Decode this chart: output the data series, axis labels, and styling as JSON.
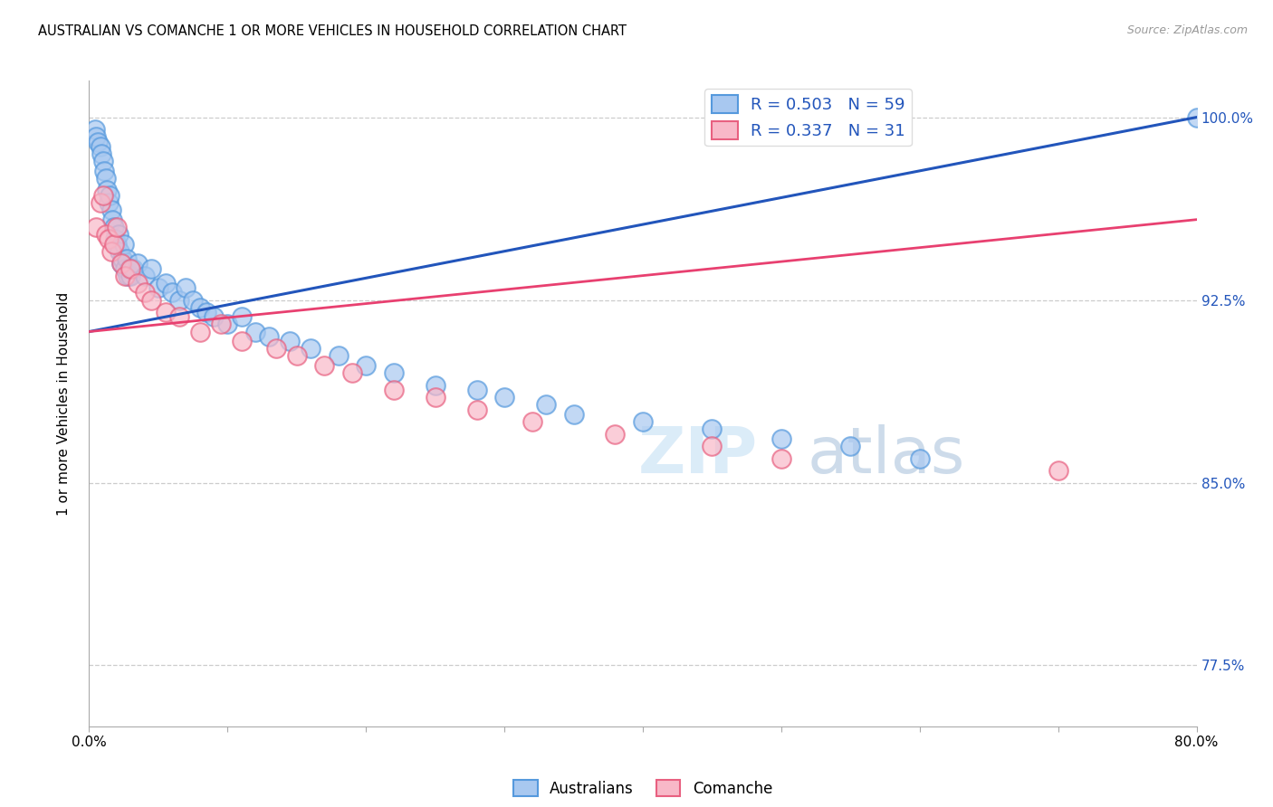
{
  "title": "AUSTRALIAN VS COMANCHE 1 OR MORE VEHICLES IN HOUSEHOLD CORRELATION CHART",
  "source": "Source: ZipAtlas.com",
  "ylabel": "1 or more Vehicles in Household",
  "xlim": [
    0.0,
    80.0
  ],
  "ylim": [
    75.0,
    101.5
  ],
  "background_color": "#ffffff",
  "australians_fill": "#a8c8f0",
  "australians_edge": "#5599dd",
  "comanche_fill": "#f8b8c8",
  "comanche_edge": "#e86080",
  "blue_line_color": "#2255bb",
  "pink_line_color": "#e84070",
  "legend_color": "#2255bb",
  "R_australian": 0.503,
  "N_australian": 59,
  "R_comanche": 0.337,
  "N_comanche": 31,
  "grid_color": "#cccccc",
  "aus_x": [
    0.4,
    0.5,
    0.6,
    0.8,
    0.9,
    1.0,
    1.1,
    1.2,
    1.3,
    1.4,
    1.5,
    1.6,
    1.7,
    1.8,
    1.9,
    2.0,
    2.1,
    2.2,
    2.3,
    2.4,
    2.5,
    2.6,
    2.7,
    2.8,
    2.9,
    3.0,
    3.2,
    3.5,
    4.0,
    4.5,
    5.0,
    5.5,
    6.0,
    6.5,
    7.0,
    7.5,
    8.0,
    8.5,
    9.0,
    10.0,
    11.0,
    12.0,
    13.0,
    14.5,
    16.0,
    18.0,
    20.0,
    22.0,
    25.0,
    28.0,
    30.0,
    33.0,
    35.0,
    40.0,
    45.0,
    50.0,
    55.0,
    60.0,
    80.0
  ],
  "aus_y": [
    99.5,
    99.2,
    99.0,
    98.8,
    98.5,
    98.2,
    97.8,
    97.5,
    97.0,
    96.5,
    96.8,
    96.2,
    95.8,
    95.5,
    95.0,
    94.8,
    95.2,
    94.5,
    94.0,
    94.2,
    94.8,
    93.8,
    94.2,
    93.5,
    93.8,
    93.5,
    93.8,
    94.0,
    93.5,
    93.8,
    93.0,
    93.2,
    92.8,
    92.5,
    93.0,
    92.5,
    92.2,
    92.0,
    91.8,
    91.5,
    91.8,
    91.2,
    91.0,
    90.8,
    90.5,
    90.2,
    89.8,
    89.5,
    89.0,
    88.8,
    88.5,
    88.2,
    87.8,
    87.5,
    87.2,
    86.8,
    86.5,
    86.0,
    100.0
  ],
  "com_x": [
    0.5,
    0.8,
    1.0,
    1.2,
    1.4,
    1.6,
    1.8,
    2.0,
    2.3,
    2.6,
    3.0,
    3.5,
    4.0,
    4.5,
    5.5,
    6.5,
    8.0,
    9.5,
    11.0,
    13.5,
    15.0,
    17.0,
    19.0,
    22.0,
    25.0,
    28.0,
    32.0,
    38.0,
    45.0,
    50.0,
    70.0
  ],
  "com_y": [
    95.5,
    96.5,
    96.8,
    95.2,
    95.0,
    94.5,
    94.8,
    95.5,
    94.0,
    93.5,
    93.8,
    93.2,
    92.8,
    92.5,
    92.0,
    91.8,
    91.2,
    91.5,
    90.8,
    90.5,
    90.2,
    89.8,
    89.5,
    88.8,
    88.5,
    88.0,
    87.5,
    87.0,
    86.5,
    86.0,
    85.5
  ],
  "blue_line_x": [
    0,
    80
  ],
  "blue_line_y": [
    91.2,
    100.0
  ],
  "pink_line_x": [
    0,
    80
  ],
  "pink_line_y": [
    91.2,
    95.8
  ]
}
